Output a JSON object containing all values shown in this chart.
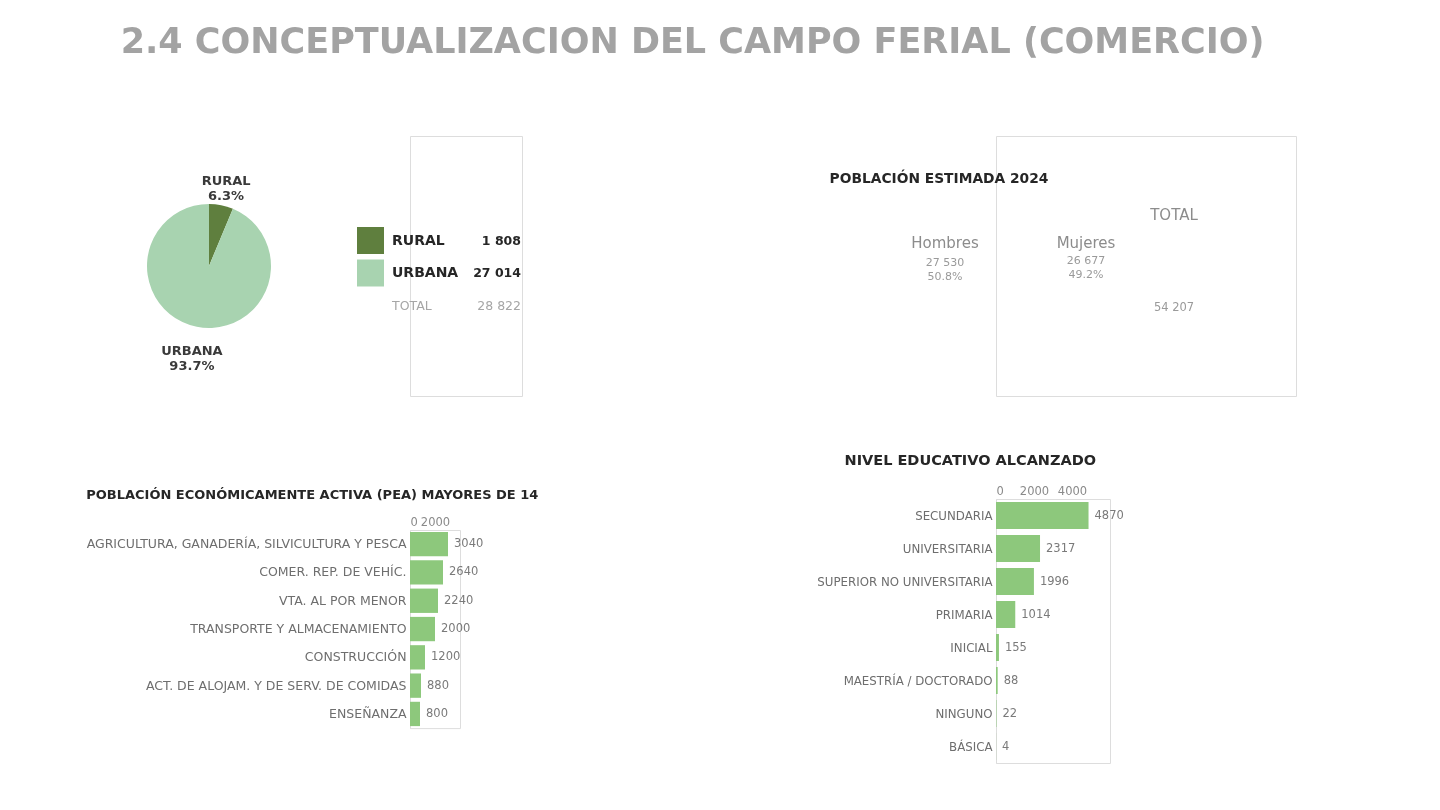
{
  "chart_data": [
    {
      "type": "pie",
      "title": "2.4  CONCEPTUALIZACION DEL CAMPO FERIAL (COMERCIO)",
      "categories": [
        "RURAL",
        "URBANA"
      ],
      "values": [
        6.3,
        93.7
      ],
      "colors": [
        "#5f7f3e",
        "#a8d3b0"
      ],
      "value_labels": [
        "6.3%",
        "93.7%"
      ],
      "legend": "right",
      "annotations": [
        "1 808",
        "27 014",
        "TOTAL",
        "28 822"
      ]
    },
    {
      "type": "other",
      "title": "POBLACIÓN ESTIMADA 2024",
      "annotations": [
        "Hombres",
        "27 530",
        "50.8%",
        "Mujeres",
        "26 677",
        "49.2%",
        "TOTAL",
        "54 207"
      ]
    },
    {
      "type": "bar",
      "orientation": "horizontal",
      "title": "POBLACIÓN ECONÓMICAMENTE ACTIVA (PEA) MAYORES DE 14",
      "categories": [
        "AGRICULTURA, GANADERÍA, SILVICULTURA Y PESCA",
        "COMER. REP. DE VEHÍC.",
        "VTA. AL POR MENOR",
        "TRANSPORTE Y ALMACENAMIENTO",
        "CONSTRUCCIÓN",
        "ACT. DE ALOJAM. Y DE SERV. DE COMIDAS",
        "ENSEÑANZA"
      ],
      "values": [
        3040,
        2640,
        2240,
        2000,
        1200,
        880,
        800
      ],
      "color": "#8dc87c",
      "xlim": [
        0,
        4000
      ],
      "xticks": [
        0,
        2000
      ],
      "data_labels": true
    },
    {
      "type": "bar",
      "orientation": "horizontal",
      "title": "NIVEL EDUCATIVO ALCANZADO",
      "categories": [
        "SECUNDARIA",
        "UNIVERSITARIA",
        "SUPERIOR NO UNIVERSITARIA",
        "PRIMARIA",
        "INICIAL",
        "MAESTRÍA / DOCTORADO",
        "NINGUNO",
        "BÁSICA"
      ],
      "values": [
        4870,
        2317,
        1996,
        1014,
        155,
        88,
        22,
        4
      ],
      "color": "#8dc87c",
      "xlim": [
        0,
        6000
      ],
      "xticks": [
        0,
        2000,
        4000
      ],
      "data_labels": true
    }
  ]
}
